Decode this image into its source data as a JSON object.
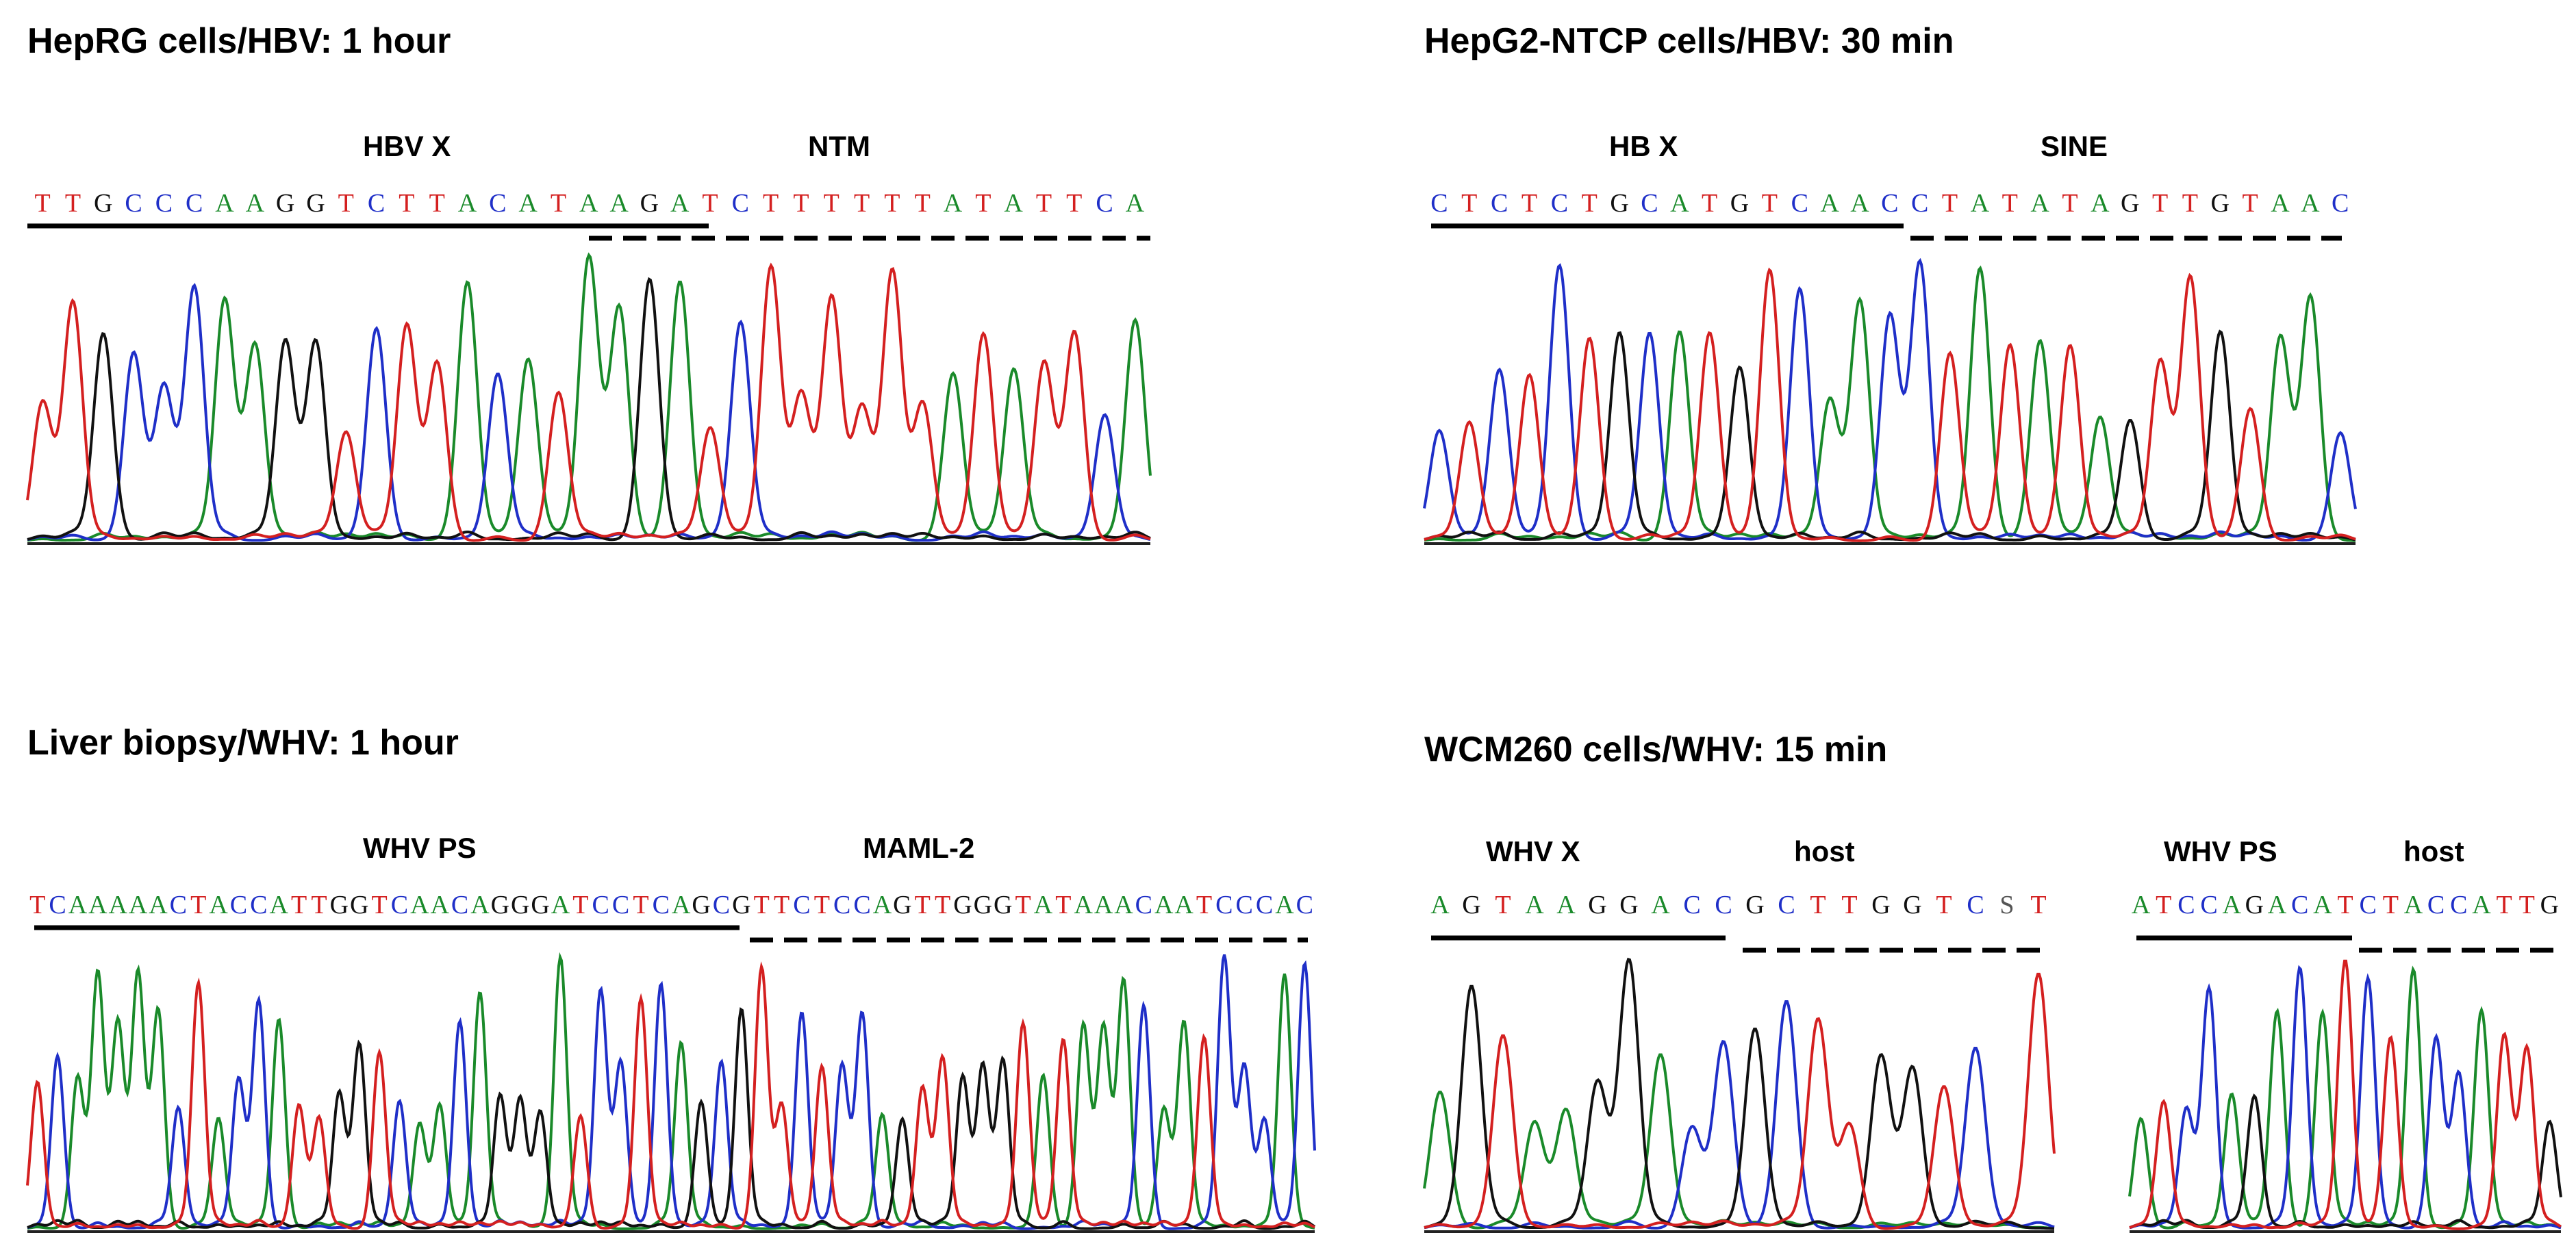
{
  "colors": {
    "A": "#1a8a2a",
    "C": "#1f2fc8",
    "G": "#111111",
    "T": "#d42020"
  },
  "panels": [
    {
      "id": "p1",
      "title": "HepRG cells/HBV: 1 hour",
      "segments": [
        {
          "label": "HBV X",
          "line": "solid"
        },
        {
          "label": "NTM",
          "line": "dashed"
        }
      ],
      "sequence": "TTGCCCAAGGTCTTACATAAGATCTTTTTTATATTCA"
    },
    {
      "id": "p2",
      "title": "HepG2-NTCP cells/HBV: 30 min",
      "segments": [
        {
          "label": "HB X",
          "line": "solid"
        },
        {
          "label": "SINE",
          "line": "dashed"
        }
      ],
      "sequence": "CTCTCTGCATGTCAACCTATATAGTTGTAAC"
    },
    {
      "id": "p3",
      "title": "Liver biopsy/WHV: 1 hour",
      "segments": [
        {
          "label": "WHV PS",
          "line": "solid"
        },
        {
          "label": "MAML-2",
          "line": "dashed"
        }
      ],
      "sequence": "TCAAAAACTACCATTGGTCAACAGGGATCCTCAGCGTTCTCCAGTTGGGTATAAACAATCCCAC"
    },
    {
      "id": "p4",
      "title": "WCM260 cells/WHV: 15 min",
      "segments": [
        {
          "label": "WHV X",
          "line": "solid"
        },
        {
          "label": "host",
          "line": "dashed"
        }
      ],
      "sequence": "AGTAAGGACCGCTTGGTCST"
    },
    {
      "id": "p5",
      "title": "",
      "segments": [
        {
          "label": "WHV PS",
          "line": "solid"
        },
        {
          "label": "host",
          "line": "dashed"
        }
      ],
      "sequence": "ATCCAGACATCTACCATTG"
    }
  ]
}
